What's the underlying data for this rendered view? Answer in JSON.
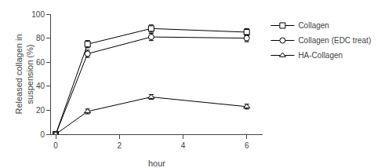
{
  "chart_data": {
    "type": "line",
    "xlabel": "hour",
    "ylabel": "Released collagen in\nsuspension (%)",
    "x": [
      0,
      1,
      3,
      6
    ],
    "series": [
      {
        "name": "Collagen",
        "color": "#000000",
        "marker": "square",
        "line_style": "solid",
        "values": [
          0,
          75,
          88,
          85
        ],
        "errors": [
          0,
          3,
          3,
          3
        ]
      },
      {
        "name": "Collagen (EDC treat)",
        "color": "#000000",
        "marker": "circle",
        "line_style": "solid",
        "values": [
          0,
          67,
          81,
          80
        ],
        "errors": [
          0,
          3,
          3,
          3
        ]
      },
      {
        "name": "HA-Collagen",
        "color": "#000000",
        "marker": "triangle-up",
        "line_style": "solid",
        "values": [
          0,
          19,
          31,
          23
        ],
        "errors": [
          0,
          2,
          2,
          2
        ]
      }
    ],
    "xlim": [
      -0.15,
      6.5
    ],
    "ylim": [
      0,
      100
    ],
    "xticks": [
      0,
      2,
      4,
      6
    ],
    "yticks": [
      0,
      20,
      40,
      60,
      80,
      100
    ],
    "grid": false,
    "legend": "upper right"
  }
}
